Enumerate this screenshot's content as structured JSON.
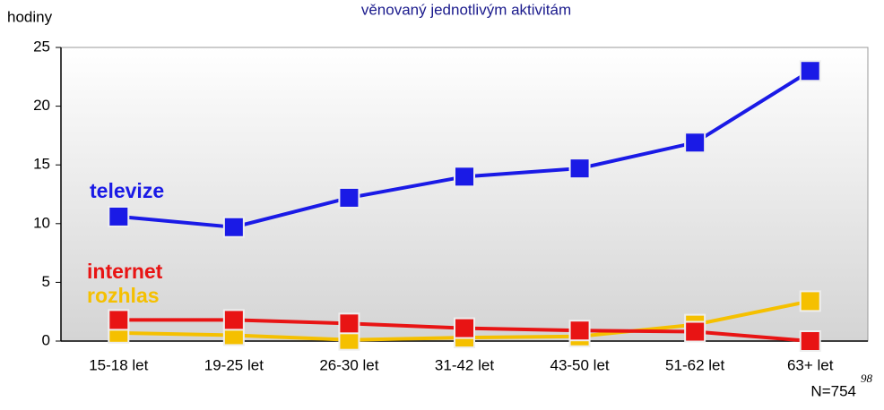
{
  "chart_data": {
    "type": "line",
    "title": "věnovaný jednotlivým aktivitám",
    "y_label": "hodiny",
    "categories": [
      "15-18 let",
      "19-25 let",
      "26-30 let",
      "31-42 let",
      "43-50 let",
      "51-62 let",
      "63+ let"
    ],
    "series": [
      {
        "name": "televize",
        "color": "#1a1ae6",
        "values": [
          10.6,
          9.7,
          12.2,
          14.0,
          14.7,
          16.9,
          23.0
        ]
      },
      {
        "name": "internet",
        "color": "#e81414",
        "values": [
          1.8,
          1.8,
          1.5,
          1.1,
          0.9,
          0.8,
          0
        ]
      },
      {
        "name": "rozhlas",
        "color": "#f5c000",
        "values": [
          0.7,
          0.5,
          0.1,
          0.3,
          0.4,
          1.4,
          3.4
        ]
      }
    ],
    "ylim": [
      0,
      25
    ],
    "yticks": [
      0,
      5,
      10,
      15,
      20,
      25
    ],
    "note": "N=754",
    "page_number": "98"
  }
}
